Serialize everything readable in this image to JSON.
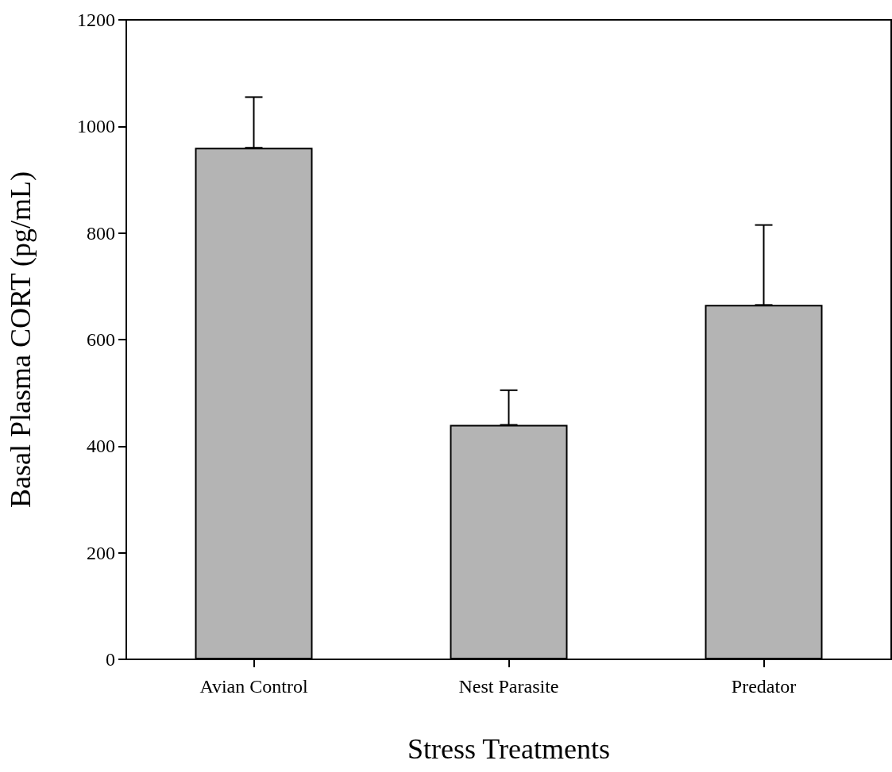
{
  "chart_data": {
    "type": "bar",
    "xlabel": "Stress Treatments",
    "ylabel": "Basal Plasma CORT (pg/mL)",
    "categories": [
      "Avian Control",
      "Nest Parasite",
      "Predator"
    ],
    "values": [
      960,
      440,
      665
    ],
    "color": "#b4b4b4",
    "errors": [
      [
        960,
        1055
      ],
      [
        440,
        505
      ],
      [
        665,
        815
      ]
    ],
    "ylim": [
      0,
      1200
    ],
    "yticks": [
      0,
      200,
      400,
      600,
      800,
      1000,
      1200
    ],
    "grid": false
  }
}
